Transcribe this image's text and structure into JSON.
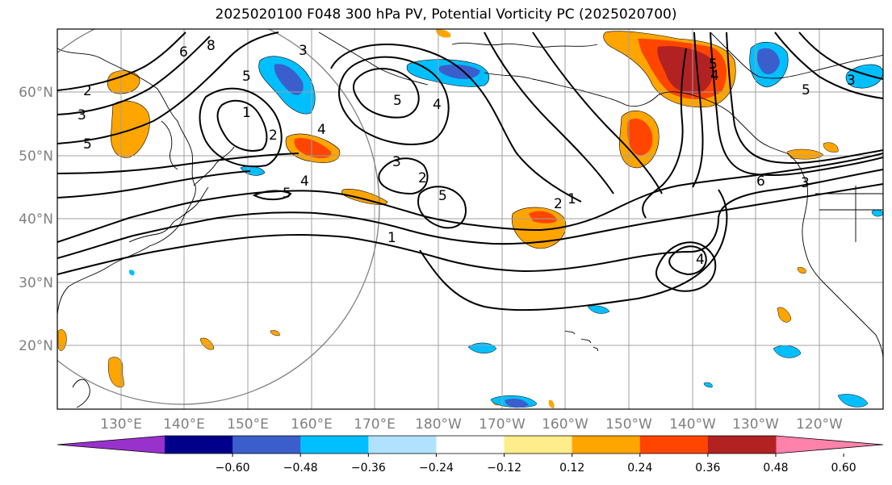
{
  "title": "2025020100 F048 300 hPa PV, Potential Vorticity PC (2025020700)",
  "lat_labels": [
    "60°N",
    "50°N",
    "40°N",
    "30°N",
    "20°N"
  ],
  "lon_labels": [
    "130°E",
    "140°E",
    "150°E",
    "160°E",
    "170°E",
    "180°W",
    "170°W",
    "160°W",
    "150°W",
    "140°W",
    "130°W",
    "120°W"
  ],
  "colorbar": {
    "ticks": [
      "−0.60",
      "−0.48",
      "−0.36",
      "−0.24",
      "−0.12",
      "0.12",
      "0.24",
      "0.36",
      "0.48",
      "0.60"
    ],
    "colors": [
      "#9932cc",
      "#00008b",
      "#3a5fcd",
      "#00bfff",
      "#b0e2ff",
      "#ffffff",
      "#ffec8b",
      "#ffa500",
      "#ff4500",
      "#b22222",
      "#ff82ab"
    ]
  },
  "contour_labels": [
    "2",
    "3",
    "5",
    "6",
    "8",
    "5",
    "3",
    "1",
    "2",
    "4",
    "5",
    "4",
    "5",
    "3",
    "2",
    "5",
    "4",
    "1",
    "1",
    "2",
    "4",
    "6",
    "5",
    "3",
    "5",
    "4",
    "3"
  ]
}
